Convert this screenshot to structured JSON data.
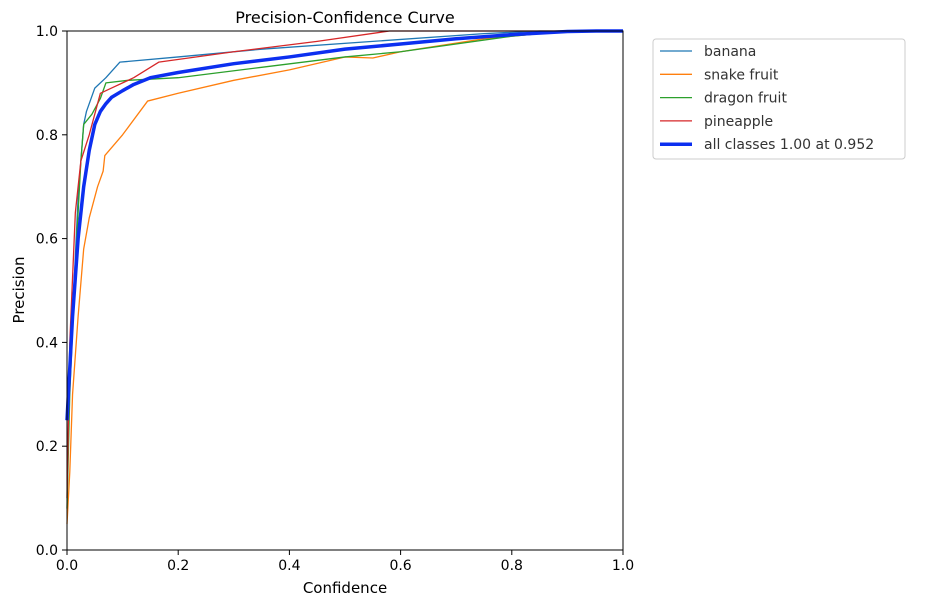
{
  "chart_data": {
    "type": "line",
    "title": "Precision-Confidence Curve",
    "xlabel": "Confidence",
    "ylabel": "Precision",
    "xlim": [
      0,
      1
    ],
    "ylim": [
      0,
      1
    ],
    "xticks": [
      "0.0",
      "0.2",
      "0.4",
      "0.6",
      "0.8",
      "1.0"
    ],
    "yticks": [
      "0.0",
      "0.2",
      "0.4",
      "0.6",
      "0.8",
      "1.0"
    ],
    "grid": false,
    "legend_position": "outside-top-right",
    "series": [
      {
        "name": "banana",
        "color": "#1f77b4",
        "linewidth": "thin",
        "points": [
          [
            0.0,
            0.25
          ],
          [
            0.01,
            0.45
          ],
          [
            0.02,
            0.68
          ],
          [
            0.03,
            0.82
          ],
          [
            0.035,
            0.845
          ],
          [
            0.05,
            0.89
          ],
          [
            0.07,
            0.91
          ],
          [
            0.095,
            0.94
          ],
          [
            0.2,
            0.95
          ],
          [
            0.35,
            0.965
          ],
          [
            0.55,
            0.98
          ],
          [
            0.75,
            0.995
          ],
          [
            0.85,
            1.0
          ],
          [
            1.0,
            1.0
          ]
        ]
      },
      {
        "name": "snake fruit",
        "color": "#ff7f0e",
        "linewidth": "thin",
        "points": [
          [
            0.0,
            0.05
          ],
          [
            0.005,
            0.15
          ],
          [
            0.01,
            0.3
          ],
          [
            0.02,
            0.45
          ],
          [
            0.03,
            0.58
          ],
          [
            0.04,
            0.64
          ],
          [
            0.055,
            0.7
          ],
          [
            0.065,
            0.73
          ],
          [
            0.068,
            0.76
          ],
          [
            0.1,
            0.8
          ],
          [
            0.145,
            0.865
          ],
          [
            0.2,
            0.88
          ],
          [
            0.3,
            0.905
          ],
          [
            0.4,
            0.925
          ],
          [
            0.5,
            0.95
          ],
          [
            0.55,
            0.948
          ],
          [
            0.6,
            0.96
          ],
          [
            0.75,
            0.985
          ],
          [
            0.9,
            1.0
          ],
          [
            1.0,
            1.0
          ]
        ]
      },
      {
        "name": "dragon fruit",
        "color": "#2ca02c",
        "linewidth": "thin",
        "points": [
          [
            0.0,
            0.08
          ],
          [
            0.005,
            0.3
          ],
          [
            0.015,
            0.55
          ],
          [
            0.025,
            0.75
          ],
          [
            0.03,
            0.82
          ],
          [
            0.045,
            0.84
          ],
          [
            0.06,
            0.87
          ],
          [
            0.07,
            0.9
          ],
          [
            0.11,
            0.905
          ],
          [
            0.2,
            0.91
          ],
          [
            0.35,
            0.93
          ],
          [
            0.5,
            0.95
          ],
          [
            0.6,
            0.96
          ],
          [
            0.8,
            0.99
          ],
          [
            0.9,
            1.0
          ],
          [
            1.0,
            1.0
          ]
        ]
      },
      {
        "name": "pineapple",
        "color": "#d62728",
        "linewidth": "thin",
        "points": [
          [
            0.0,
            0.1
          ],
          [
            0.005,
            0.4
          ],
          [
            0.015,
            0.65
          ],
          [
            0.025,
            0.75
          ],
          [
            0.04,
            0.8
          ],
          [
            0.06,
            0.88
          ],
          [
            0.08,
            0.89
          ],
          [
            0.12,
            0.91
          ],
          [
            0.165,
            0.94
          ],
          [
            0.3,
            0.96
          ],
          [
            0.45,
            0.98
          ],
          [
            0.58,
            1.0
          ],
          [
            1.0,
            1.0
          ]
        ]
      },
      {
        "name": "all classes 1.00 at 0.952",
        "color": "#0c2ff0",
        "linewidth": "thick",
        "points": [
          [
            0.0,
            0.25
          ],
          [
            0.005,
            0.35
          ],
          [
            0.01,
            0.45
          ],
          [
            0.02,
            0.6
          ],
          [
            0.03,
            0.7
          ],
          [
            0.04,
            0.77
          ],
          [
            0.05,
            0.82
          ],
          [
            0.06,
            0.845
          ],
          [
            0.07,
            0.86
          ],
          [
            0.08,
            0.872
          ],
          [
            0.1,
            0.885
          ],
          [
            0.12,
            0.897
          ],
          [
            0.15,
            0.91
          ],
          [
            0.2,
            0.92
          ],
          [
            0.3,
            0.937
          ],
          [
            0.4,
            0.95
          ],
          [
            0.5,
            0.965
          ],
          [
            0.6,
            0.975
          ],
          [
            0.7,
            0.985
          ],
          [
            0.8,
            0.993
          ],
          [
            0.9,
            0.999
          ],
          [
            0.952,
            1.0
          ],
          [
            1.0,
            1.0
          ]
        ]
      }
    ]
  }
}
